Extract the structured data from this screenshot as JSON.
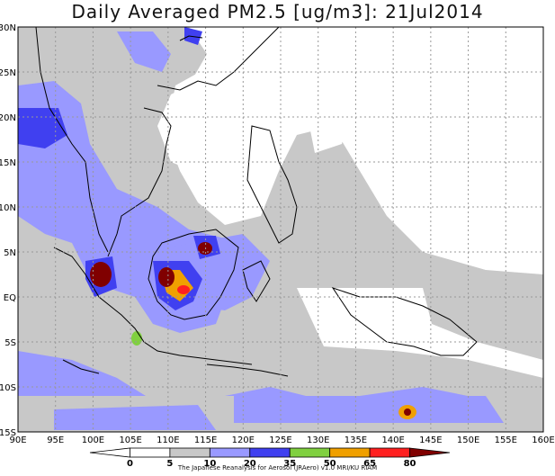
{
  "title": "Daily Averaged PM2.5 [ug/m3]: 21Jul2014",
  "credit": "The Japanese Reanalysis for Aerosol (JRAero) v1.0 MRI/KU RIAM",
  "map": {
    "lon_range": [
      90,
      160
    ],
    "lat_range": [
      -15,
      30
    ],
    "lon_ticks": [
      "90E",
      "95E",
      "100E",
      "105E",
      "110E",
      "115E",
      "120E",
      "125E",
      "130E",
      "135E",
      "140E",
      "145E",
      "150E",
      "155E",
      "160E"
    ],
    "lat_ticks": [
      "30N",
      "25N",
      "20N",
      "15N",
      "10N",
      "5N",
      "EQ",
      "5S",
      "10S",
      "15S"
    ]
  },
  "colorbar": {
    "labels": [
      "0",
      "5",
      "10",
      "20",
      "35",
      "50",
      "65",
      "80"
    ],
    "colors": [
      "#ffffff",
      "#ffffff",
      "#c8c8c8",
      "#9999ff",
      "#4040f0",
      "#80d040",
      "#f0a000",
      "#ff2020",
      "#800000"
    ]
  }
}
